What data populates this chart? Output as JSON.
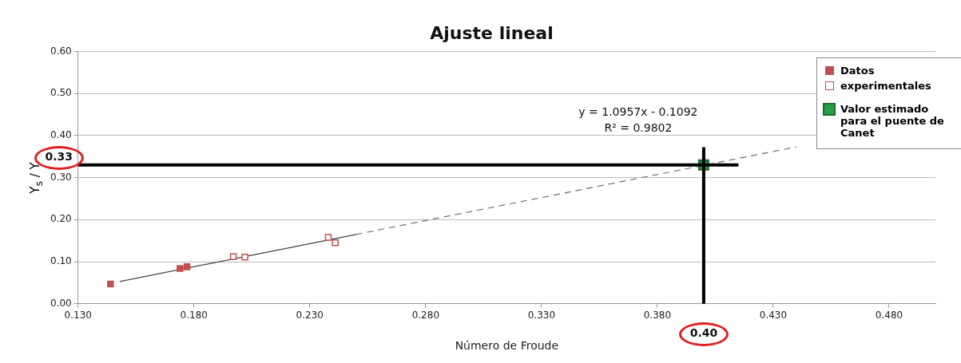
{
  "chart_data": {
    "type": "scatter",
    "title": "Ajuste lineal",
    "xlabel": "Número de Froude",
    "ylabel": "Y$_{s}$ / Y",
    "xlim": [
      0.13,
      0.5
    ],
    "xticks": [
      {
        "value": 0.13,
        "label": "0.130"
      },
      {
        "value": 0.18,
        "label": "0.180"
      },
      {
        "value": 0.23,
        "label": "0.230"
      },
      {
        "value": 0.28,
        "label": "0.280"
      },
      {
        "value": 0.33,
        "label": "0.330"
      },
      {
        "value": 0.38,
        "label": "0.380"
      },
      {
        "value": 0.43,
        "label": "0.430"
      },
      {
        "value": 0.48,
        "label": "0.480"
      }
    ],
    "ylim": [
      0,
      0.6
    ],
    "yticks": [
      {
        "value": 0,
        "label": "0.00"
      },
      {
        "value": 0.1,
        "label": "0.10"
      },
      {
        "value": 0.2,
        "label": "0.20"
      },
      {
        "value": 0.3,
        "label": "0.30"
      },
      {
        "value": 0.4,
        "label": "0.40"
      },
      {
        "value": 0.5,
        "label": "0.50"
      },
      {
        "value": 0.6,
        "label": "0.60"
      }
    ],
    "grid": "y",
    "legend": "right",
    "series": [
      {
        "name": "Datos",
        "color": "#c0504d",
        "marker": "square",
        "x": [
          0.144,
          0.174,
          0.177
        ],
        "values": [
          0.047,
          0.084,
          0.088
        ]
      },
      {
        "name": "experimentales",
        "color": "#c0504d",
        "marker": "square",
        "x": [
          0.197,
          0.202,
          0.238,
          0.241
        ],
        "values": [
          0.112,
          0.111,
          0.158,
          0.145
        ]
      },
      {
        "name": "Valor estimado para el puente de Canet",
        "color": "#22a045",
        "marker": "square",
        "x": [
          0.4
        ],
        "values": [
          0.33
        ]
      },
      {
        "type": "line",
        "color": "#404040",
        "line_style": "solid",
        "x": [
          0.148,
          0.25
        ],
        "values": [
          0.053,
          0.165
        ]
      },
      {
        "type": "line",
        "color": "#707070",
        "line_style": "dashed",
        "x": [
          0.25,
          0.44
        ],
        "values": [
          0.165,
          0.373
        ]
      }
    ],
    "ref_lines": [
      {
        "axis": "y",
        "value": 0.33,
        "label": "0.33",
        "color": "#000000"
      },
      {
        "axis": "x",
        "value": 0.4,
        "label": "0.40",
        "color": "#000000"
      }
    ],
    "annotations": [
      "y = 1.0957x - 0.1092",
      "R² = 0.9802"
    ]
  }
}
